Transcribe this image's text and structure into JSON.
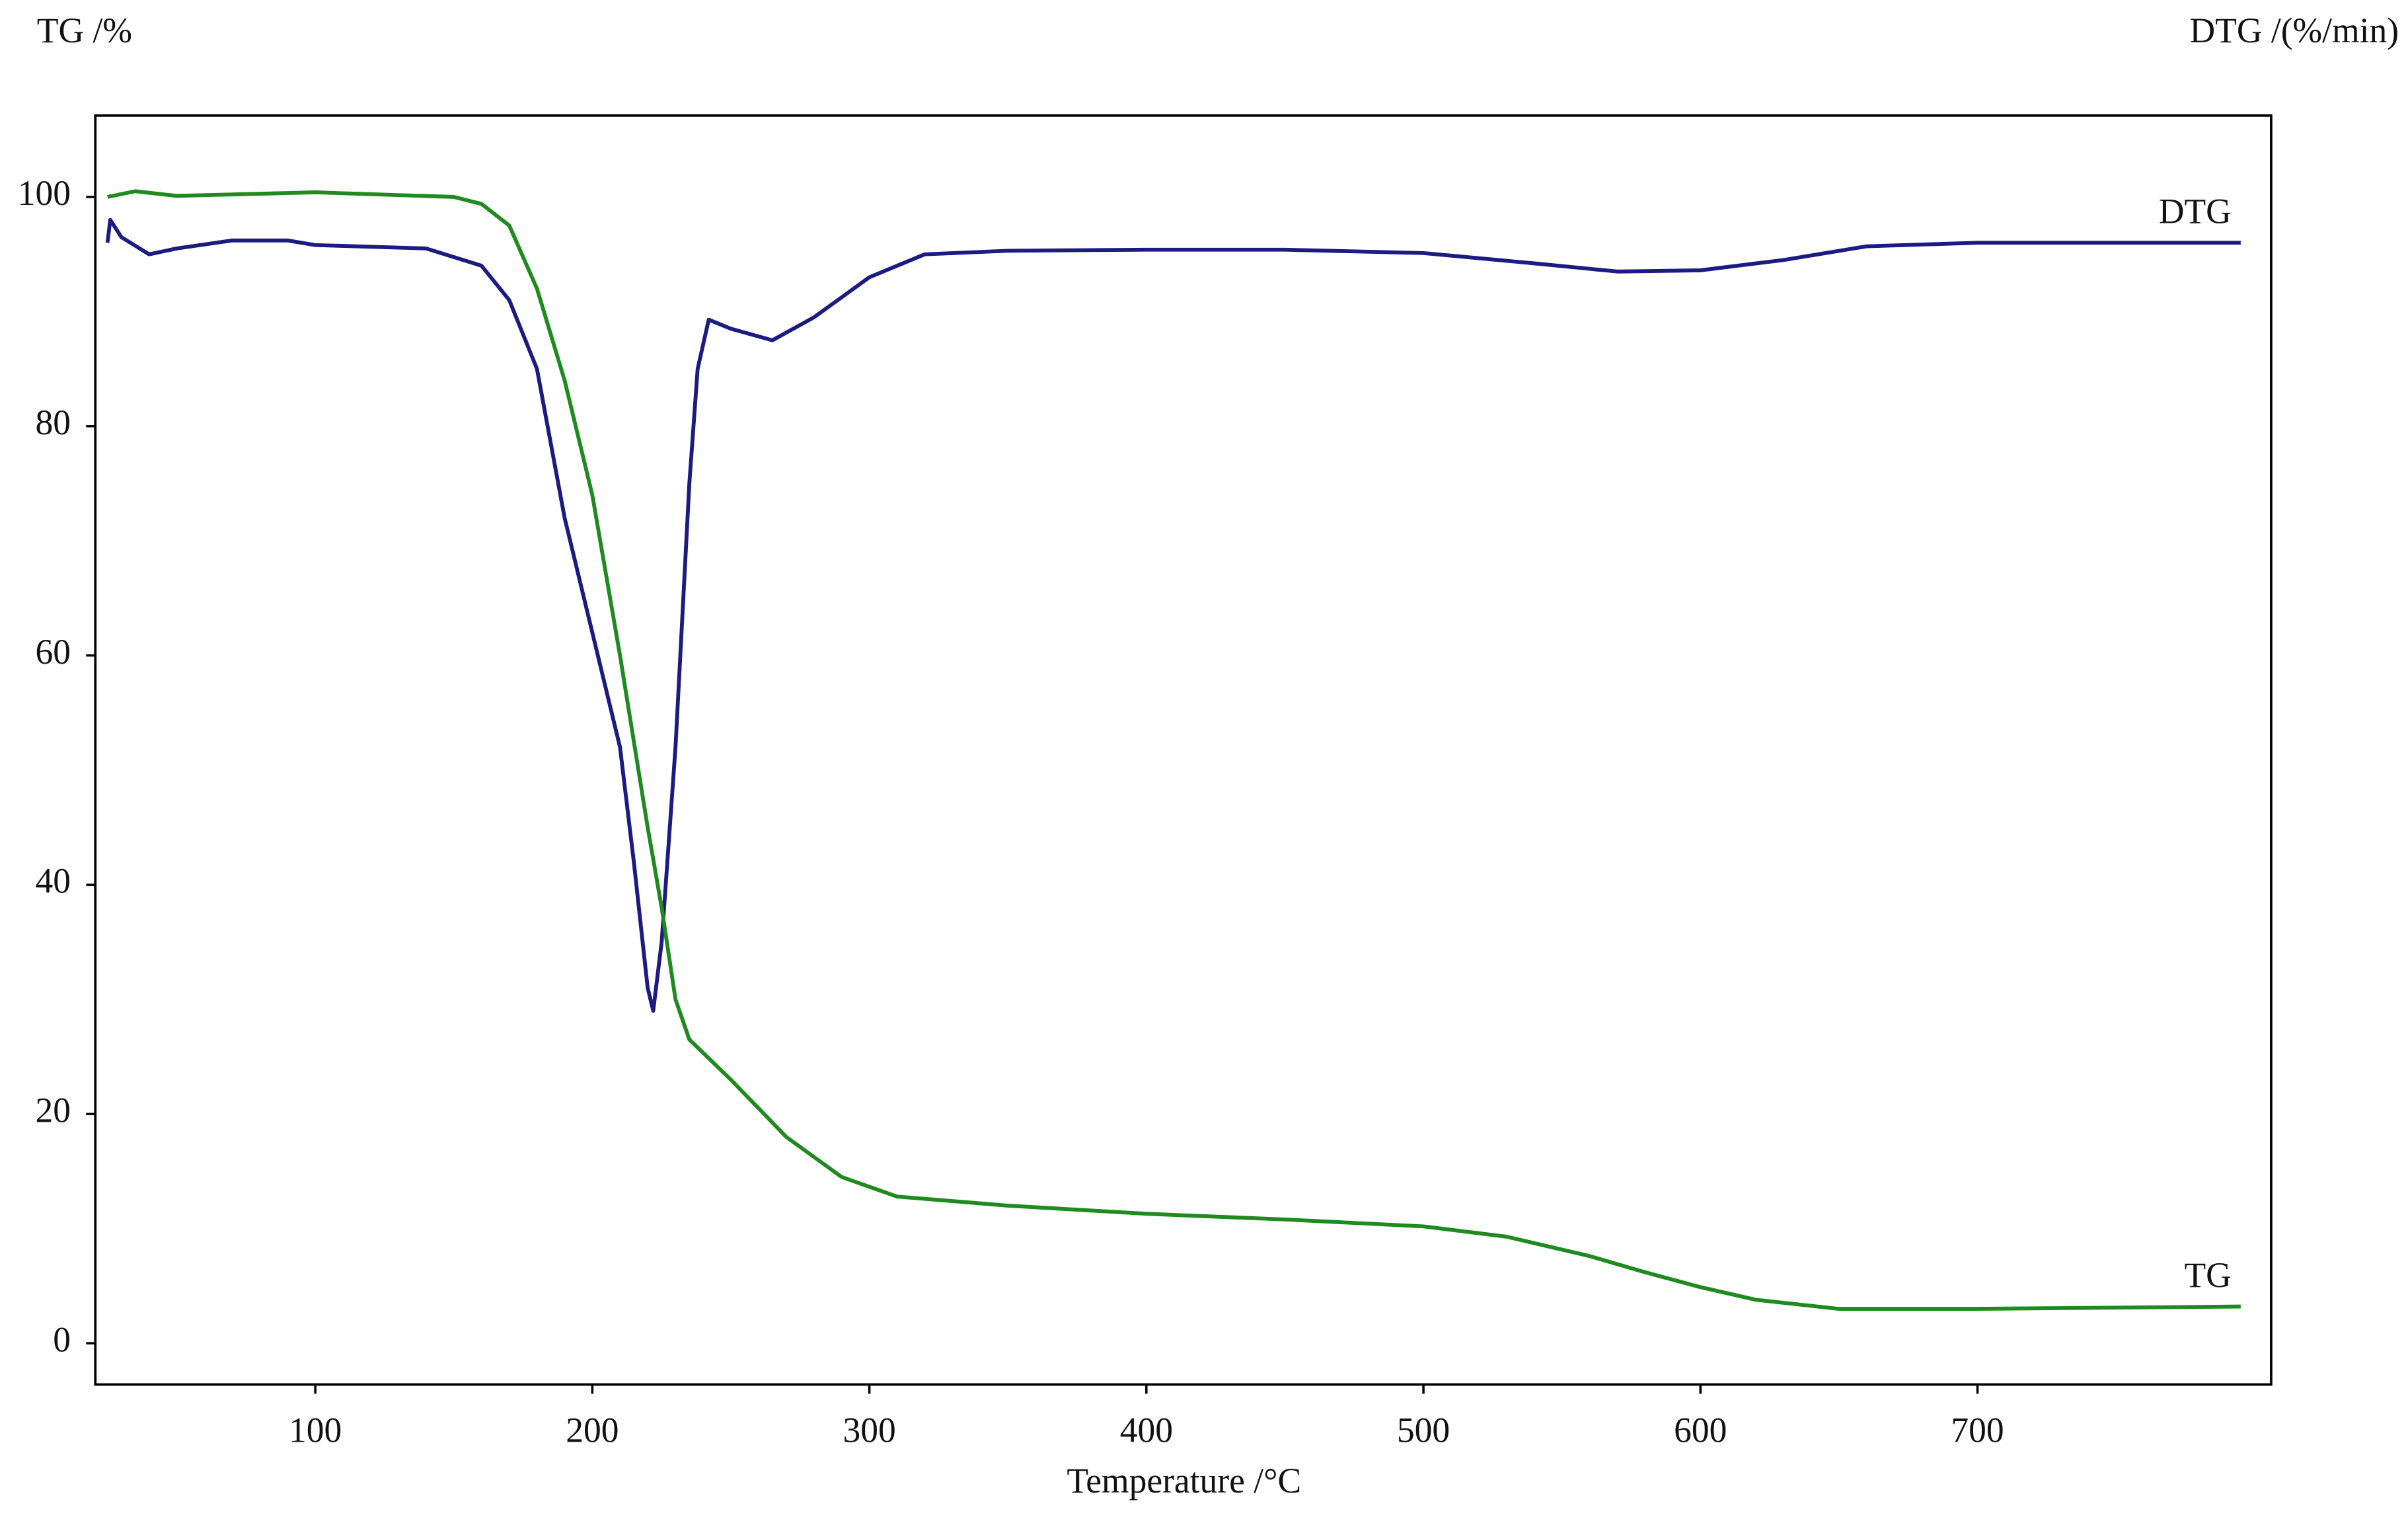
{
  "chart_data": {
    "type": "line",
    "y_label": "TG /%",
    "y2_label": "DTG /(%/min)",
    "x_label": "Temperature /°C",
    "xlim": [
      20.6,
      806
    ],
    "ylim": [
      -3.6,
      107.1
    ],
    "xticks": [
      100,
      200,
      300,
      400,
      500,
      600,
      700
    ],
    "yticks": [
      0,
      20,
      40,
      60,
      80,
      100
    ],
    "series": [
      {
        "name": "DTG",
        "color": "#1b1b82",
        "x": [
          25,
          26,
          30,
          40,
          50,
          70,
          90,
          100,
          140,
          160,
          170,
          180,
          190,
          200,
          210,
          215,
          220,
          222,
          225,
          230,
          235,
          238,
          242,
          250,
          265,
          280,
          300,
          320,
          350,
          400,
          450,
          500,
          540,
          570,
          600,
          630,
          660,
          700,
          795
        ],
        "values": [
          96,
          98,
          96.5,
          95,
          95.5,
          96.2,
          96.2,
          95.8,
          95.5,
          94,
          91,
          85,
          72,
          62,
          52,
          42,
          31,
          29,
          35,
          52,
          75,
          85,
          89.3,
          88.5,
          87.5,
          89.5,
          93,
          95,
          95.3,
          95.4,
          95.4,
          95.1,
          94.2,
          93.5,
          93.6,
          94.5,
          95.7,
          96,
          96
        ]
      },
      {
        "name": "TG",
        "color": "#1f8a1f",
        "x": [
          25,
          35,
          50,
          100,
          150,
          160,
          170,
          180,
          190,
          200,
          210,
          220,
          225,
          230,
          235,
          250,
          270,
          290,
          310,
          350,
          400,
          450,
          500,
          530,
          560,
          580,
          600,
          620,
          650,
          700,
          795
        ],
        "values": [
          100,
          100.5,
          100.1,
          100.4,
          100,
          99.4,
          97.5,
          92,
          84,
          74,
          60,
          45,
          38,
          30,
          26.5,
          23,
          18,
          14.5,
          12.8,
          12,
          11.3,
          10.8,
          10.2,
          9.3,
          7.6,
          6.2,
          4.9,
          3.8,
          3,
          3,
          3.2
        ]
      }
    ]
  }
}
